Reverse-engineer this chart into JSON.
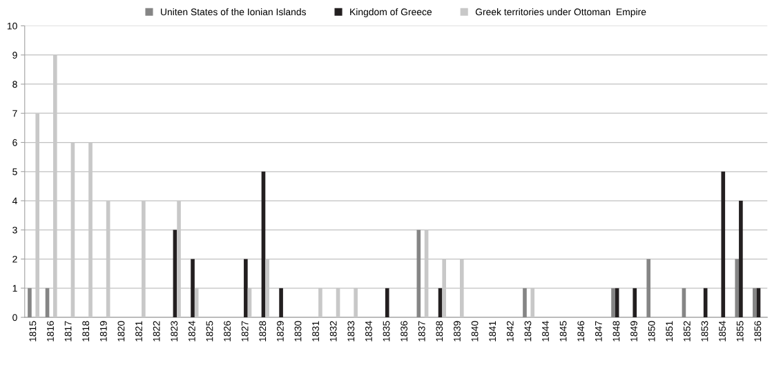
{
  "chart_data": {
    "type": "bar",
    "categories": [
      "1815",
      "1816",
      "1817",
      "1818",
      "1819",
      "1820",
      "1821",
      "1822",
      "1823",
      "1824",
      "1825",
      "1826",
      "1827",
      "1828",
      "1829",
      "1830",
      "1831",
      "1832",
      "1833",
      "1834",
      "1835",
      "1836",
      "1837",
      "1838",
      "1839",
      "1840",
      "1841",
      "1842",
      "1843",
      "1844",
      "1845",
      "1846",
      "1847",
      "1848",
      "1849",
      "1850",
      "1851",
      "1852",
      "1853",
      "1854",
      "1855",
      "1856"
    ],
    "series": [
      {
        "name": "Uniten States of the Ionian Islands",
        "color": "#858585",
        "values": [
          1,
          1,
          0,
          0,
          0,
          0,
          0,
          0,
          0,
          0,
          0,
          0,
          0,
          0,
          0,
          0,
          0,
          0,
          0,
          0,
          0,
          0,
          3,
          0,
          0,
          0,
          0,
          0,
          1,
          0,
          0,
          0,
          0,
          1,
          0,
          2,
          0,
          1,
          0,
          0,
          2,
          1
        ]
      },
      {
        "name": "Kingdom of Greece",
        "color": "#231f20",
        "values": [
          0,
          0,
          0,
          0,
          0,
          0,
          0,
          0,
          3,
          2,
          0,
          0,
          2,
          5,
          1,
          0,
          0,
          0,
          0,
          0,
          1,
          0,
          0,
          1,
          0,
          0,
          0,
          0,
          0,
          0,
          0,
          0,
          0,
          1,
          1,
          0,
          0,
          0,
          1,
          5,
          4,
          1
        ]
      },
      {
        "name": "Greek territories under Ottoman  Empire",
        "color": "#c8c8c8",
        "values": [
          7,
          9,
          6,
          6,
          4,
          0,
          4,
          0,
          4,
          1,
          0,
          0,
          1,
          2,
          0,
          0,
          1,
          1,
          1,
          0,
          0,
          0,
          3,
          2,
          2,
          0,
          0,
          0,
          1,
          0,
          0,
          0,
          0,
          0,
          0,
          0,
          0,
          0,
          0,
          0,
          0,
          0
        ]
      }
    ],
    "ylim": [
      0,
      10
    ],
    "yticks": [
      0,
      1,
      2,
      3,
      4,
      5,
      6,
      7,
      8,
      9,
      10
    ],
    "grid": "y",
    "legend": "top"
  }
}
